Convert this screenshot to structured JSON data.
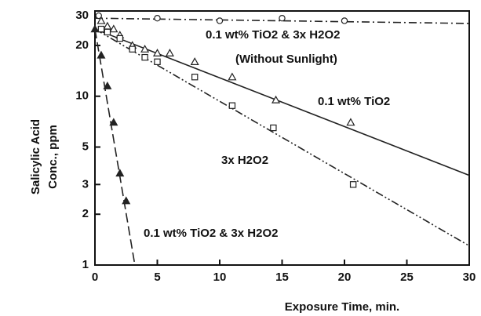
{
  "chart_data": {
    "type": "scatter",
    "xlabel": "Exposure Time, min.",
    "ylabel": [
      "Salicylic Acid",
      "Conc., ppm"
    ],
    "xlim": [
      0,
      30
    ],
    "ylim": [
      1,
      32
    ],
    "log_y": true,
    "xticks": [
      0,
      5,
      10,
      15,
      20,
      25,
      30
    ],
    "yticks": [
      1,
      2,
      3,
      5,
      10,
      20,
      30
    ],
    "annotations": [
      "0.1 wt% TiO2 & 3x H2O2",
      "(Without Sunlight)",
      "0.1 wt% TiO2",
      "3x H2O2",
      "0.1 wt% TiO2 & 3x H2O2"
    ],
    "series": [
      {
        "marker": "circle",
        "color": "#222",
        "dash": "dashdot",
        "x": [
          0.3,
          5,
          10,
          15,
          20
        ],
        "values": [
          30,
          29,
          28,
          29,
          28
        ],
        "fit": {
          "x": [
            0,
            30
          ],
          "values": [
            29,
            27
          ]
        }
      },
      {
        "marker": "triangle",
        "color": "#222",
        "dash": "solid",
        "x": [
          0.5,
          1,
          1.5,
          2,
          3,
          4,
          5,
          6,
          8,
          11,
          14.5,
          20.5
        ],
        "values": [
          28,
          26,
          25,
          23,
          20,
          19,
          18,
          18,
          16,
          13,
          9.5,
          7
        ],
        "fit": {
          "x": [
            0,
            30
          ],
          "values": [
            25,
            3.4
          ]
        }
      },
      {
        "marker": "square",
        "color": "#222",
        "dash": "dashdotdot",
        "x": [
          0.5,
          1,
          2,
          3,
          4,
          5,
          8,
          11,
          14.3,
          20.7
        ],
        "values": [
          25,
          24,
          22,
          19,
          17,
          16,
          13,
          8.8,
          6.5,
          3
        ],
        "fit": {
          "x": [
            0,
            30
          ],
          "values": [
            25,
            1.3
          ]
        }
      },
      {
        "marker": "filled-triangle",
        "color": "#222",
        "dash": "dashed",
        "x": [
          0,
          0.5,
          1,
          1.5,
          2,
          2.5
        ],
        "values": [
          25,
          17.5,
          11.5,
          7,
          3.5,
          2.4
        ],
        "fit": {
          "x": [
            0,
            3.2
          ],
          "values": [
            25,
            1
          ]
        }
      }
    ]
  }
}
